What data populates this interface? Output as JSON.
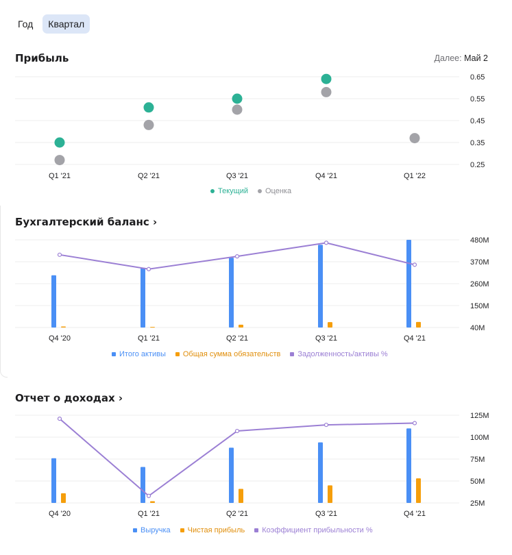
{
  "tabs": [
    {
      "label": "Год",
      "active": false
    },
    {
      "label": "Квартал",
      "active": true
    }
  ],
  "profit": {
    "title": "Прибыль",
    "next_label": "Далее:",
    "next_value": "Май 2",
    "legend": {
      "current": "Текущий",
      "estimate": "Оценка"
    }
  },
  "balance": {
    "title": "Бухгалтерский баланс",
    "chevron": "›"
  },
  "income": {
    "title": "Отчет о доходах",
    "chevron": "›"
  },
  "colors": {
    "current": "#2cb195",
    "estimate": "#a3a3a8",
    "blue": "#4a8ff5",
    "orange": "#f59e0b",
    "purple": "#9b7fd4",
    "grid": "#ececec"
  },
  "chart_data": [
    {
      "type": "scatter",
      "title": "Прибыль",
      "categories": [
        "Q1 '21",
        "Q2 '21",
        "Q3 '21",
        "Q4 '21",
        "Q1 '22"
      ],
      "yticks": [
        "0.65",
        "0.55",
        "0.45",
        "0.35",
        "0.25"
      ],
      "ylim": [
        0.25,
        0.65
      ],
      "series": [
        {
          "name": "Текущий",
          "values": [
            0.35,
            0.51,
            0.55,
            0.64,
            null
          ]
        },
        {
          "name": "Оценка",
          "values": [
            0.27,
            0.43,
            0.5,
            0.58,
            0.37
          ]
        }
      ]
    },
    {
      "type": "bar",
      "title": "Бухгалтерский баланс",
      "categories": [
        "Q4 '20",
        "Q1 '21",
        "Q2 '21",
        "Q3 '21",
        "Q4 '21"
      ],
      "yticks": [
        "480M",
        "370M",
        "260M",
        "150M",
        "40M"
      ],
      "ylim": [
        40,
        480
      ],
      "series": [
        {
          "name": "Итого активы",
          "kind": "bar",
          "values": [
            302,
            340,
            390,
            455,
            480
          ]
        },
        {
          "name": "Общая сумма обязательств",
          "kind": "bar",
          "values": [
            45,
            43,
            54,
            67,
            68
          ]
        },
        {
          "name": "Задолженность/активы %",
          "kind": "line",
          "values": [
            405,
            333,
            397,
            465,
            355
          ]
        }
      ]
    },
    {
      "type": "bar",
      "title": "Отчет о доходах",
      "categories": [
        "Q4 '20",
        "Q1 '21",
        "Q2 '21",
        "Q3 '21",
        "Q4 '21"
      ],
      "yticks": [
        "125M",
        "100M",
        "75M",
        "50M",
        "25M"
      ],
      "ylim": [
        25,
        125
      ],
      "series": [
        {
          "name": "Выручка",
          "kind": "bar",
          "values": [
            76,
            66,
            88,
            94,
            110
          ]
        },
        {
          "name": "Чистая прибыль",
          "kind": "bar",
          "values": [
            36,
            27,
            41,
            45,
            53
          ]
        },
        {
          "name": "Коэффициент прибыльности %",
          "kind": "line",
          "values": [
            121,
            33,
            107,
            114,
            116
          ]
        }
      ]
    }
  ]
}
